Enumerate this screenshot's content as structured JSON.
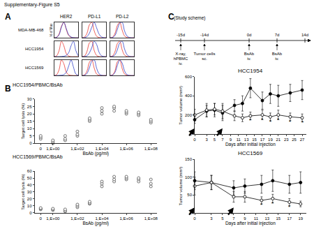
{
  "figure_title": "Supplementary-Figure S5",
  "panels": [
    "A",
    "B",
    "C"
  ],
  "panel_a": {
    "columns": [
      "HER2",
      "PD-L1",
      "PD-L2"
    ],
    "rows": [
      "MDA-MB-468",
      "HCC1954",
      "HCC1569"
    ],
    "y_label": "% of Max"
  },
  "study_scheme": {
    "title": "(Study scheme)",
    "events": [
      {
        "day": "-15d",
        "label_lines": [
          "X-ray,",
          "hPBMC",
          "iv."
        ]
      },
      {
        "day": "-14d",
        "label_lines": [
          "Tumor cells",
          "sc."
        ]
      },
      {
        "day": "0d",
        "label_lines": [
          "BsAb",
          "iv."
        ]
      },
      {
        "day": "7d",
        "label_lines": [
          "BsAb",
          "iv."
        ]
      },
      {
        "day": "14d",
        "label_lines": []
      }
    ]
  },
  "chart_data": [
    {
      "type": "line",
      "x": [
        0,
        1,
        2,
        3,
        4,
        5,
        6,
        7,
        8,
        9,
        10
      ],
      "xlim": [
        0,
        10
      ],
      "ylim": [
        0,
        100
      ],
      "tick_labels": false,
      "series": [
        {
          "color": "#e8352e",
          "values": [
            0,
            4,
            25,
            75,
            100,
            55,
            15,
            3,
            0,
            0,
            0
          ]
        },
        {
          "color": "#3040c8",
          "values": [
            0,
            3,
            20,
            70,
            100,
            60,
            20,
            5,
            1,
            0,
            0
          ]
        }
      ]
    },
    {
      "type": "line",
      "x": [
        0,
        1,
        2,
        3,
        4,
        5,
        6,
        7,
        8,
        9,
        10
      ],
      "xlim": [
        0,
        10
      ],
      "ylim": [
        0,
        100
      ],
      "tick_labels": false,
      "series": [
        {
          "color": "#e8352e",
          "values": [
            0,
            5,
            30,
            85,
            100,
            45,
            10,
            2,
            0,
            0,
            0
          ]
        },
        {
          "color": "#3040c8",
          "values": [
            0,
            1,
            8,
            30,
            70,
            100,
            65,
            25,
            6,
            1,
            0
          ]
        }
      ]
    },
    {
      "type": "line",
      "x": [
        0,
        1,
        2,
        3,
        4,
        5,
        6,
        7,
        8,
        9,
        10
      ],
      "xlim": [
        0,
        10
      ],
      "ylim": [
        0,
        100
      ],
      "tick_labels": false,
      "series": [
        {
          "color": "#e8352e",
          "values": [
            0,
            4,
            28,
            80,
            100,
            50,
            12,
            2,
            0,
            0,
            0
          ]
        },
        {
          "color": "#3040c8",
          "values": [
            0,
            2,
            15,
            55,
            95,
            100,
            45,
            12,
            2,
            0,
            0
          ]
        }
      ]
    },
    {
      "type": "line",
      "x": [
        0,
        1,
        2,
        3,
        4,
        5,
        6,
        7,
        8,
        9,
        10
      ],
      "xlim": [
        0,
        10
      ],
      "ylim": [
        0,
        100
      ],
      "tick_labels": false,
      "series": [
        {
          "color": "#e8352e",
          "values": [
            0,
            6,
            40,
            100,
            70,
            20,
            4,
            0,
            0,
            0,
            0
          ]
        },
        {
          "color": "#3040c8",
          "values": [
            0,
            0,
            0,
            1,
            3,
            8,
            25,
            70,
            100,
            40,
            5
          ]
        }
      ]
    },
    {
      "type": "line",
      "x": [
        0,
        1,
        2,
        3,
        4,
        5,
        6,
        7,
        8,
        9,
        10
      ],
      "xlim": [
        0,
        10
      ],
      "ylim": [
        0,
        100
      ],
      "tick_labels": false,
      "series": [
        {
          "color": "#e8352e",
          "values": [
            0,
            5,
            35,
            90,
            100,
            40,
            8,
            1,
            0,
            0,
            0
          ]
        },
        {
          "color": "#3040c8",
          "values": [
            0,
            1,
            6,
            25,
            60,
            100,
            80,
            30,
            6,
            1,
            0
          ]
        }
      ]
    },
    {
      "type": "line",
      "x": [
        0,
        1,
        2,
        3,
        4,
        5,
        6,
        7,
        8,
        9,
        10
      ],
      "xlim": [
        0,
        10
      ],
      "ylim": [
        0,
        100
      ],
      "tick_labels": false,
      "series": [
        {
          "color": "#e8352e",
          "values": [
            0,
            5,
            32,
            85,
            100,
            45,
            10,
            2,
            0,
            0,
            0
          ]
        },
        {
          "color": "#3040c8",
          "values": [
            0,
            2,
            12,
            45,
            90,
            100,
            50,
            14,
            2,
            0,
            0
          ]
        }
      ]
    },
    {
      "type": "line",
      "x": [
        0,
        1,
        2,
        3,
        4,
        5,
        6,
        7,
        8,
        9,
        10
      ],
      "xlim": [
        0,
        10
      ],
      "ylim": [
        0,
        100
      ],
      "tick_labels": false,
      "series": [
        {
          "color": "#e8352e",
          "values": [
            0,
            6,
            38,
            100,
            75,
            22,
            5,
            1,
            0,
            0,
            0
          ]
        },
        {
          "color": "#3040c8",
          "values": [
            0,
            0,
            1,
            2,
            6,
            20,
            60,
            100,
            55,
            10,
            1
          ]
        }
      ]
    },
    {
      "type": "line",
      "x": [
        0,
        1,
        2,
        3,
        4,
        5,
        6,
        7,
        8,
        9,
        10
      ],
      "xlim": [
        0,
        10
      ],
      "ylim": [
        0,
        100
      ],
      "tick_labels": false,
      "series": [
        {
          "color": "#e8352e",
          "values": [
            0,
            5,
            30,
            85,
            100,
            48,
            10,
            2,
            0,
            0,
            0
          ]
        },
        {
          "color": "#3040c8",
          "values": [
            0,
            2,
            14,
            50,
            92,
            100,
            48,
            12,
            2,
            0,
            0
          ]
        }
      ]
    },
    {
      "type": "line",
      "x": [
        0,
        1,
        2,
        3,
        4,
        5,
        6,
        7,
        8,
        9,
        10
      ],
      "xlim": [
        0,
        10
      ],
      "ylim": [
        0,
        100
      ],
      "tick_labels": false,
      "series": [
        {
          "color": "#e8352e",
          "values": [
            0,
            5,
            30,
            88,
            100,
            45,
            10,
            2,
            0,
            0,
            0
          ]
        },
        {
          "color": "#3040c8",
          "values": [
            0,
            3,
            20,
            65,
            100,
            80,
            30,
            6,
            1,
            0,
            0
          ]
        }
      ]
    },
    {
      "type": "scatter",
      "title": "HCC1954/PBMC/BsAb",
      "x_label": "BsAb (pg/ml)",
      "y_label": "Target cell lysis (%)",
      "categories": [
        "0",
        "1,E+00",
        null,
        "1,E+02",
        null,
        "1,E+04",
        null,
        "1,E+06",
        null,
        "1,E+08"
      ],
      "ylim": [
        0,
        30
      ],
      "yticks": [
        0,
        5,
        10,
        15,
        20,
        25,
        30
      ],
      "series": [
        {
          "color": "#555555",
          "marker": "open circle",
          "line_style": "none",
          "values": [
            3,
            0,
            2,
            5,
            15,
            20,
            22,
            20,
            19,
            14
          ]
        },
        {
          "color": "#555555",
          "marker": "open circle",
          "line_style": "none",
          "values": [
            4,
            1,
            3,
            6,
            16,
            22,
            24,
            21,
            20,
            15
          ]
        },
        {
          "color": "#555555",
          "marker": "open circle",
          "line_style": "none",
          "values": [
            5,
            2,
            5,
            8,
            17,
            24,
            25,
            22,
            21,
            16
          ]
        }
      ]
    },
    {
      "type": "scatter",
      "title": "HCC1569/PBMC/BsAb",
      "x_label": "BsAb (pg/ml)",
      "y_label": "Target cell lysis (%)",
      "categories": [
        "0",
        "1,E+00",
        null,
        "1,E+02",
        null,
        "1,E+04",
        null,
        "1,E+06",
        null,
        "1,E+08"
      ],
      "ylim": [
        0,
        60
      ],
      "yticks": [
        0,
        10,
        20,
        30,
        40,
        50,
        60
      ],
      "series": [
        {
          "color": "#555555",
          "marker": "open circle",
          "line_style": "none",
          "values": [
            5,
            4,
            2,
            8,
            13,
            38,
            45,
            48,
            45,
            38
          ]
        },
        {
          "color": "#555555",
          "marker": "open circle",
          "line_style": "none",
          "values": [
            6,
            5,
            3,
            10,
            14,
            42,
            48,
            50,
            48,
            42
          ]
        },
        {
          "color": "#555555",
          "marker": "open circle",
          "line_style": "none",
          "values": [
            7,
            6,
            5,
            12,
            16,
            45,
            52,
            52,
            50,
            48
          ]
        }
      ]
    },
    {
      "type": "line",
      "title": "HCC1954",
      "x_label": "Days after initial injection",
      "y_label": "Tumor volume (mm³)",
      "x": [
        0,
        3,
        5,
        7,
        10,
        12,
        14,
        17,
        19,
        21,
        24,
        27
      ],
      "xlim": [
        0,
        28
      ],
      "xticks": [
        0,
        3,
        5,
        7,
        9,
        11,
        13,
        15,
        17,
        19,
        21,
        23,
        25,
        27
      ],
      "ylim": [
        0,
        600
      ],
      "yticks": [
        0,
        200,
        400,
        600
      ],
      "arrow_days": [
        0,
        7
      ],
      "series": [
        {
          "color": "#000000",
          "marker": "filled circle",
          "line_style": "solid",
          "values": [
            150,
            240,
            250,
            220,
            300,
            320,
            480,
            350,
            420,
            400,
            430,
            460
          ],
          "errors": [
            40,
            60,
            70,
            80,
            60,
            80,
            100,
            90,
            100,
            110,
            90,
            100
          ]
        },
        {
          "color": "#000000",
          "marker": "open circle",
          "line_style": "solid",
          "values": [
            200,
            250,
            260,
            240,
            190,
            170,
            190,
            200,
            180,
            200,
            180,
            170
          ],
          "errors": [
            60,
            70,
            60,
            80,
            50,
            40,
            40,
            50,
            40,
            50,
            40,
            40
          ]
        }
      ],
      "annotations": [
        {
          "x": 14,
          "y": 190,
          "text": "*"
        },
        {
          "x": 17,
          "y": 200,
          "text": "*"
        },
        {
          "x": 19,
          "y": 180,
          "text": "*"
        },
        {
          "x": 21,
          "y": 200,
          "text": "*"
        },
        {
          "x": 24,
          "y": 180,
          "text": "*"
        },
        {
          "x": 27,
          "y": 170,
          "text": "*"
        }
      ]
    },
    {
      "type": "line",
      "title": "HCC1569",
      "x_label": "Days after initial injection",
      "y_label": "Tumor volume (mm³)",
      "x": [
        0,
        3,
        7,
        9,
        12,
        14,
        17,
        19
      ],
      "xlim": [
        0,
        20
      ],
      "xticks": [
        0,
        3,
        5,
        7,
        9,
        11,
        13,
        15,
        17,
        19
      ],
      "ylim": [
        0,
        150
      ],
      "yticks": [
        0,
        50,
        100,
        150
      ],
      "arrow_days": [
        0,
        7
      ],
      "series": [
        {
          "color": "#000000",
          "marker": "filled circle",
          "line_style": "solid",
          "values": [
            90,
            85,
            70,
            75,
            80,
            90,
            80,
            85
          ],
          "errors": [
            25,
            20,
            20,
            20,
            25,
            30,
            25,
            30
          ]
        },
        {
          "color": "#000000",
          "marker": "open circle",
          "line_style": "solid",
          "values": [
            75,
            85,
            45,
            45,
            35,
            40,
            30,
            25
          ],
          "errors": [
            25,
            20,
            15,
            15,
            10,
            12,
            10,
            8
          ]
        }
      ],
      "annotations": [
        {
          "x": 12,
          "y": 35,
          "text": "*"
        },
        {
          "x": 14,
          "y": 40,
          "text": "*"
        },
        {
          "x": 17,
          "y": 30,
          "text": "*"
        }
      ]
    }
  ]
}
